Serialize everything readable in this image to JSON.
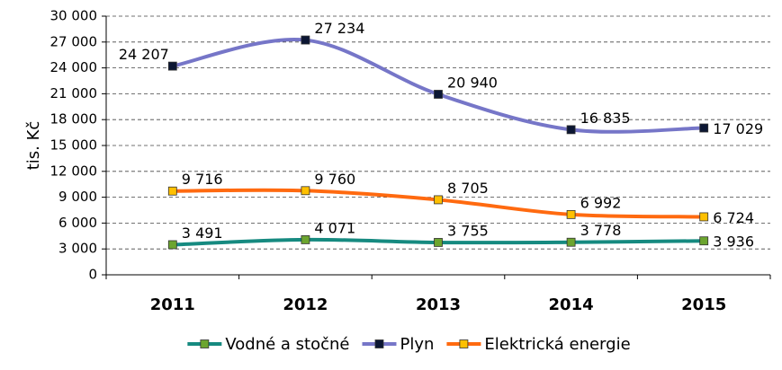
{
  "chart_data": {
    "type": "line",
    "y_label": "tis. Kč",
    "categories": [
      "2011",
      "2012",
      "2013",
      "2014",
      "2015"
    ],
    "series": [
      {
        "name": "Vodné a stočné",
        "color": "#168a80",
        "marker_color": "#6ca52f",
        "values": [
          3491,
          4071,
          3755,
          3778,
          3936
        ],
        "value_labels": [
          "3 491",
          "4 071",
          "3 755",
          "3 778",
          "3 936"
        ]
      },
      {
        "name": "Plyn",
        "color": "#7676c8",
        "marker_color": "#0b1633",
        "values": [
          24207,
          27234,
          20940,
          16835,
          17029
        ],
        "value_labels": [
          "24 207",
          "27 234",
          "20 940",
          "16 835",
          "17 029"
        ]
      },
      {
        "name": "Elektrická energie",
        "color": "#ff6a10",
        "marker_color": "#ffc000",
        "values": [
          9716,
          9760,
          8705,
          6992,
          6724
        ],
        "value_labels": [
          "9 716",
          "9 760",
          "8 705",
          "6 992",
          "6 724"
        ]
      }
    ],
    "ylim": [
      0,
      30000
    ],
    "yticks": [
      0,
      {
        "value": 3000,
        "label": "3 000"
      },
      {
        "value": 6000,
        "label": "6 000"
      },
      {
        "value": 9000,
        "label": "9 000"
      },
      {
        "value": 12000,
        "label": "12 000"
      },
      {
        "value": 15000,
        "label": "15 000"
      },
      {
        "value": 18000,
        "label": "18 000"
      },
      {
        "value": 21000,
        "label": "21 000"
      },
      {
        "value": 24000,
        "label": "24 000"
      },
      {
        "value": 27000,
        "label": "27 000"
      },
      {
        "value": 30000,
        "label": "30 000"
      }
    ],
    "grid": true,
    "legend": "bottom"
  }
}
